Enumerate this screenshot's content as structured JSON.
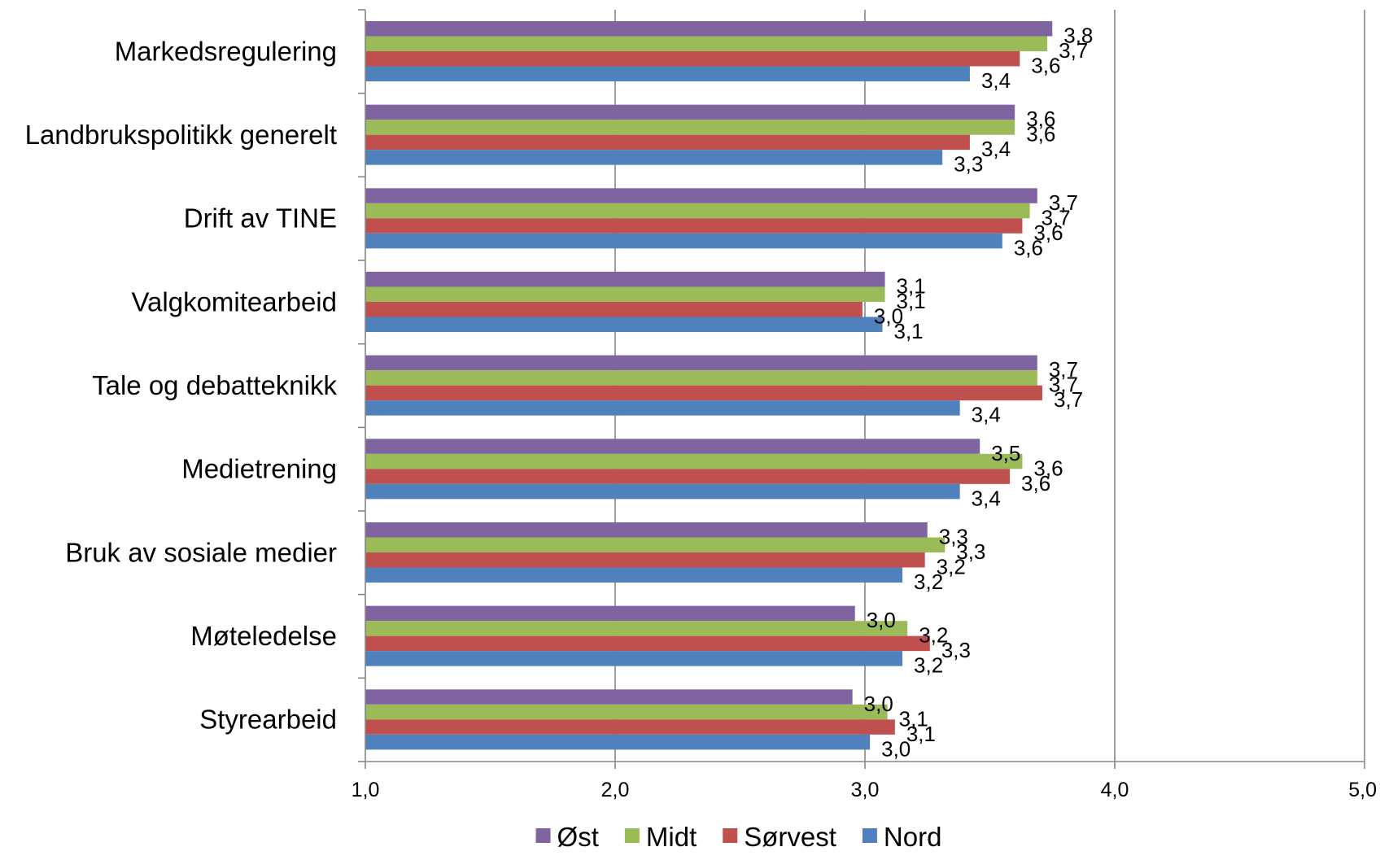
{
  "chart_data": {
    "type": "bar",
    "orientation": "horizontal",
    "categories": [
      "Markedsregulering",
      "Landbrukspolitikk generelt",
      "Drift av TINE",
      "Valgkomitearbeid",
      "Tale og debatteknikk",
      "Medietrening",
      "Bruk av sosiale medier",
      "Møteledelse",
      "Styrearbeid"
    ],
    "series": [
      {
        "name": "Øst",
        "color": "#8064A2",
        "values": [
          3.75,
          3.6,
          3.69,
          3.08,
          3.69,
          3.46,
          3.25,
          2.96,
          2.95
        ],
        "labels": [
          "3,8",
          "3,6",
          "3,7",
          "3,1",
          "3,7",
          "3,5",
          "3,3",
          "3,0",
          "3,0"
        ]
      },
      {
        "name": "Midt",
        "color": "#9BBB59",
        "values": [
          3.73,
          3.6,
          3.66,
          3.08,
          3.69,
          3.63,
          3.32,
          3.17,
          3.09
        ],
        "labels": [
          "3,7",
          "3,6",
          "3,7",
          "3,1",
          "3,7",
          "3,6",
          "3,3",
          "3,2",
          "3,1"
        ]
      },
      {
        "name": "Sørvest",
        "color": "#C0504D",
        "values": [
          3.62,
          3.42,
          3.63,
          2.99,
          3.71,
          3.58,
          3.24,
          3.26,
          3.12
        ],
        "labels": [
          "3,6",
          "3,4",
          "3,6",
          "3,0",
          "3,7",
          "3,6",
          "3,2",
          "3,3",
          "3,1"
        ]
      },
      {
        "name": "Nord",
        "color": "#4F81BD",
        "values": [
          3.42,
          3.31,
          3.55,
          3.07,
          3.38,
          3.38,
          3.15,
          3.15,
          3.02
        ],
        "labels": [
          "3,4",
          "3,3",
          "3,6",
          "3,1",
          "3,4",
          "3,4",
          "3,2",
          "3,2",
          "3,0"
        ]
      }
    ],
    "xlim": [
      1.0,
      5.0
    ],
    "xticks": [
      1.0,
      2.0,
      3.0,
      4.0,
      5.0
    ],
    "xtick_labels": [
      "1,0",
      "2,0",
      "3,0",
      "4,0",
      "5,0"
    ],
    "title": "",
    "xlabel": "",
    "ylabel": "",
    "grid": "vertical",
    "legend": {
      "position": "bottom",
      "order": [
        "Øst",
        "Midt",
        "Sørvest",
        "Nord"
      ]
    }
  },
  "colors": {
    "gridline": "#868686",
    "axis": "#868686"
  }
}
